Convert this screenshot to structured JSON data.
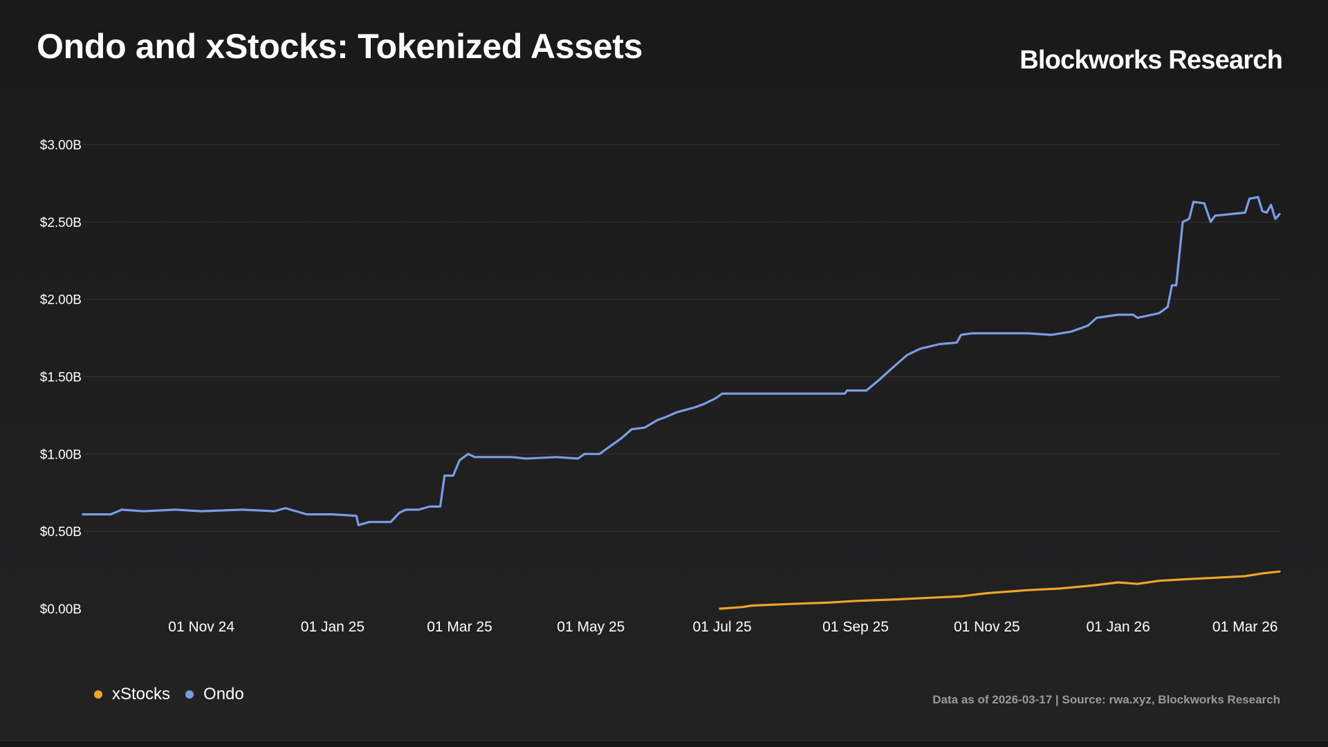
{
  "header": {
    "title": "Ondo and xStocks: Tokenized Assets",
    "brand": "Blockworks Research"
  },
  "footer": {
    "source": "Data as of 2026-03-17 | Source: rwa.xyz, Blockworks Research"
  },
  "colors": {
    "ondo": "#7b9de6",
    "xstocks": "#f0a52a",
    "grid": "#333335",
    "axis_text": "#ffffff"
  },
  "chart_data": {
    "type": "line",
    "title": "Ondo and xStocks: Tokenized Assets",
    "xlabel": "",
    "ylabel": "",
    "xlim": [
      "2024-09-07",
      "2026-03-17"
    ],
    "ylim": [
      0,
      3.0
    ],
    "grid": true,
    "legend_position": "bottom-left",
    "y_ticks": [
      "$0.00B",
      "$0.50B",
      "$1.00B",
      "$1.50B",
      "$2.00B",
      "$2.50B",
      "$3.00B"
    ],
    "y_tick_values": [
      0,
      0.5,
      1.0,
      1.5,
      2.0,
      2.5,
      3.0
    ],
    "x_ticks": [
      {
        "date": "2024-11-01",
        "label": "01 Nov 24"
      },
      {
        "date": "2025-01-01",
        "label": "01 Jan 25"
      },
      {
        "date": "2025-03-01",
        "label": "01 Mar 25"
      },
      {
        "date": "2025-05-01",
        "label": "01 May 25"
      },
      {
        "date": "2025-07-01",
        "label": "01 Jul 25"
      },
      {
        "date": "2025-09-01",
        "label": "01 Sep 25"
      },
      {
        "date": "2025-11-01",
        "label": "01 Nov 25"
      },
      {
        "date": "2026-01-01",
        "label": "01 Jan 26"
      },
      {
        "date": "2026-03-01",
        "label": "01 Mar 26"
      }
    ],
    "series": [
      {
        "name": "xStocks",
        "color": "#f0a52a",
        "points": [
          [
            "2025-06-30",
            0.0
          ],
          [
            "2025-07-10",
            0.01
          ],
          [
            "2025-07-15",
            0.02
          ],
          [
            "2025-08-01",
            0.03
          ],
          [
            "2025-08-20",
            0.04
          ],
          [
            "2025-09-01",
            0.05
          ],
          [
            "2025-09-20",
            0.06
          ],
          [
            "2025-10-05",
            0.07
          ],
          [
            "2025-10-20",
            0.08
          ],
          [
            "2025-11-01",
            0.1
          ],
          [
            "2025-11-20",
            0.12
          ],
          [
            "2025-12-05",
            0.13
          ],
          [
            "2025-12-20",
            0.15
          ],
          [
            "2026-01-01",
            0.17
          ],
          [
            "2026-01-10",
            0.16
          ],
          [
            "2026-01-20",
            0.18
          ],
          [
            "2026-02-01",
            0.19
          ],
          [
            "2026-02-15",
            0.2
          ],
          [
            "2026-03-01",
            0.21
          ],
          [
            "2026-03-10",
            0.23
          ],
          [
            "2026-03-17",
            0.24
          ]
        ]
      },
      {
        "name": "Ondo",
        "color": "#7b9de6",
        "points": [
          [
            "2024-09-07",
            0.61
          ],
          [
            "2024-09-20",
            0.61
          ],
          [
            "2024-09-25",
            0.64
          ],
          [
            "2024-10-05",
            0.63
          ],
          [
            "2024-10-20",
            0.64
          ],
          [
            "2024-11-01",
            0.63
          ],
          [
            "2024-11-20",
            0.64
          ],
          [
            "2024-12-05",
            0.63
          ],
          [
            "2024-12-10",
            0.65
          ],
          [
            "2024-12-20",
            0.61
          ],
          [
            "2025-01-01",
            0.61
          ],
          [
            "2025-01-12",
            0.6
          ],
          [
            "2025-01-13",
            0.54
          ],
          [
            "2025-01-18",
            0.56
          ],
          [
            "2025-01-28",
            0.56
          ],
          [
            "2025-02-01",
            0.62
          ],
          [
            "2025-02-04",
            0.64
          ],
          [
            "2025-02-10",
            0.64
          ],
          [
            "2025-02-15",
            0.66
          ],
          [
            "2025-02-20",
            0.66
          ],
          [
            "2025-02-22",
            0.86
          ],
          [
            "2025-02-26",
            0.86
          ],
          [
            "2025-03-01",
            0.96
          ],
          [
            "2025-03-05",
            1.0
          ],
          [
            "2025-03-08",
            0.98
          ],
          [
            "2025-03-25",
            0.98
          ],
          [
            "2025-04-01",
            0.97
          ],
          [
            "2025-04-15",
            0.98
          ],
          [
            "2025-04-25",
            0.97
          ],
          [
            "2025-04-28",
            1.0
          ],
          [
            "2025-05-05",
            1.0
          ],
          [
            "2025-05-08",
            1.03
          ],
          [
            "2025-05-15",
            1.1
          ],
          [
            "2025-05-20",
            1.16
          ],
          [
            "2025-05-26",
            1.17
          ],
          [
            "2025-06-01",
            1.22
          ],
          [
            "2025-06-05",
            1.24
          ],
          [
            "2025-06-10",
            1.27
          ],
          [
            "2025-06-18",
            1.3
          ],
          [
            "2025-06-22",
            1.32
          ],
          [
            "2025-06-28",
            1.36
          ],
          [
            "2025-07-01",
            1.39
          ],
          [
            "2025-07-20",
            1.39
          ],
          [
            "2025-08-10",
            1.39
          ],
          [
            "2025-08-27",
            1.39
          ],
          [
            "2025-08-28",
            1.41
          ],
          [
            "2025-09-06",
            1.41
          ],
          [
            "2025-09-12",
            1.48
          ],
          [
            "2025-09-20",
            1.58
          ],
          [
            "2025-09-25",
            1.64
          ],
          [
            "2025-10-01",
            1.68
          ],
          [
            "2025-10-10",
            1.71
          ],
          [
            "2025-10-18",
            1.72
          ],
          [
            "2025-10-20",
            1.77
          ],
          [
            "2025-10-25",
            1.78
          ],
          [
            "2025-11-01",
            1.78
          ],
          [
            "2025-11-10",
            1.78
          ],
          [
            "2025-11-20",
            1.78
          ],
          [
            "2025-12-01",
            1.77
          ],
          [
            "2025-12-10",
            1.79
          ],
          [
            "2025-12-18",
            1.83
          ],
          [
            "2025-12-22",
            1.88
          ],
          [
            "2026-01-01",
            1.9
          ],
          [
            "2026-01-08",
            1.9
          ],
          [
            "2026-01-10",
            1.88
          ],
          [
            "2026-01-20",
            1.91
          ],
          [
            "2026-01-24",
            1.95
          ],
          [
            "2026-01-26",
            2.09
          ],
          [
            "2026-01-28",
            2.09
          ],
          [
            "2026-01-31",
            2.5
          ],
          [
            "2026-02-03",
            2.52
          ],
          [
            "2026-02-05",
            2.63
          ],
          [
            "2026-02-10",
            2.62
          ],
          [
            "2026-02-13",
            2.5
          ],
          [
            "2026-02-15",
            2.54
          ],
          [
            "2026-02-22",
            2.55
          ],
          [
            "2026-03-01",
            2.56
          ],
          [
            "2026-03-03",
            2.65
          ],
          [
            "2026-03-07",
            2.66
          ],
          [
            "2026-03-09",
            2.57
          ],
          [
            "2026-03-11",
            2.56
          ],
          [
            "2026-03-13",
            2.61
          ],
          [
            "2026-03-15",
            2.52
          ],
          [
            "2026-03-17",
            2.55
          ]
        ]
      }
    ]
  }
}
